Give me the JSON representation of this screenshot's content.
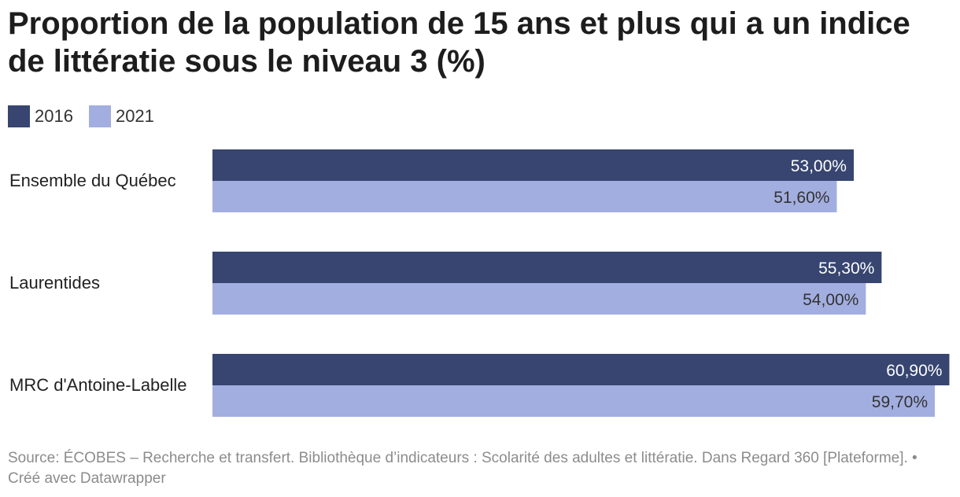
{
  "chart_data": {
    "type": "bar",
    "orientation": "horizontal",
    "title": "Proportion de la population de 15 ans et plus qui a un indice de littératie sous le niveau 3 (%)",
    "categories": [
      "Ensemble du Québec",
      "Laurentides",
      "MRC d'Antoine-Labelle"
    ],
    "series": [
      {
        "name": "2016",
        "color": "#374570",
        "label_color": "#ffffff",
        "values": [
          53.0,
          55.3,
          60.9
        ],
        "labels": [
          "53,00%",
          "55,30%",
          "60,90%"
        ]
      },
      {
        "name": "2021",
        "color": "#a3aee0",
        "label_color": "#333333",
        "values": [
          51.6,
          54.0,
          59.7
        ],
        "labels": [
          "51,60%",
          "54,00%",
          "59,70%"
        ]
      }
    ],
    "xlim": [
      0,
      61
    ],
    "grid": false,
    "legend_position": "top-left",
    "source": "Source: ÉCOBES – Recherche et transfert. Bibliothèque d’indicateurs : Scolarité des adultes et littératie. Dans Regard 360 [Plateforme]. • Créé avec Datawrapper"
  }
}
